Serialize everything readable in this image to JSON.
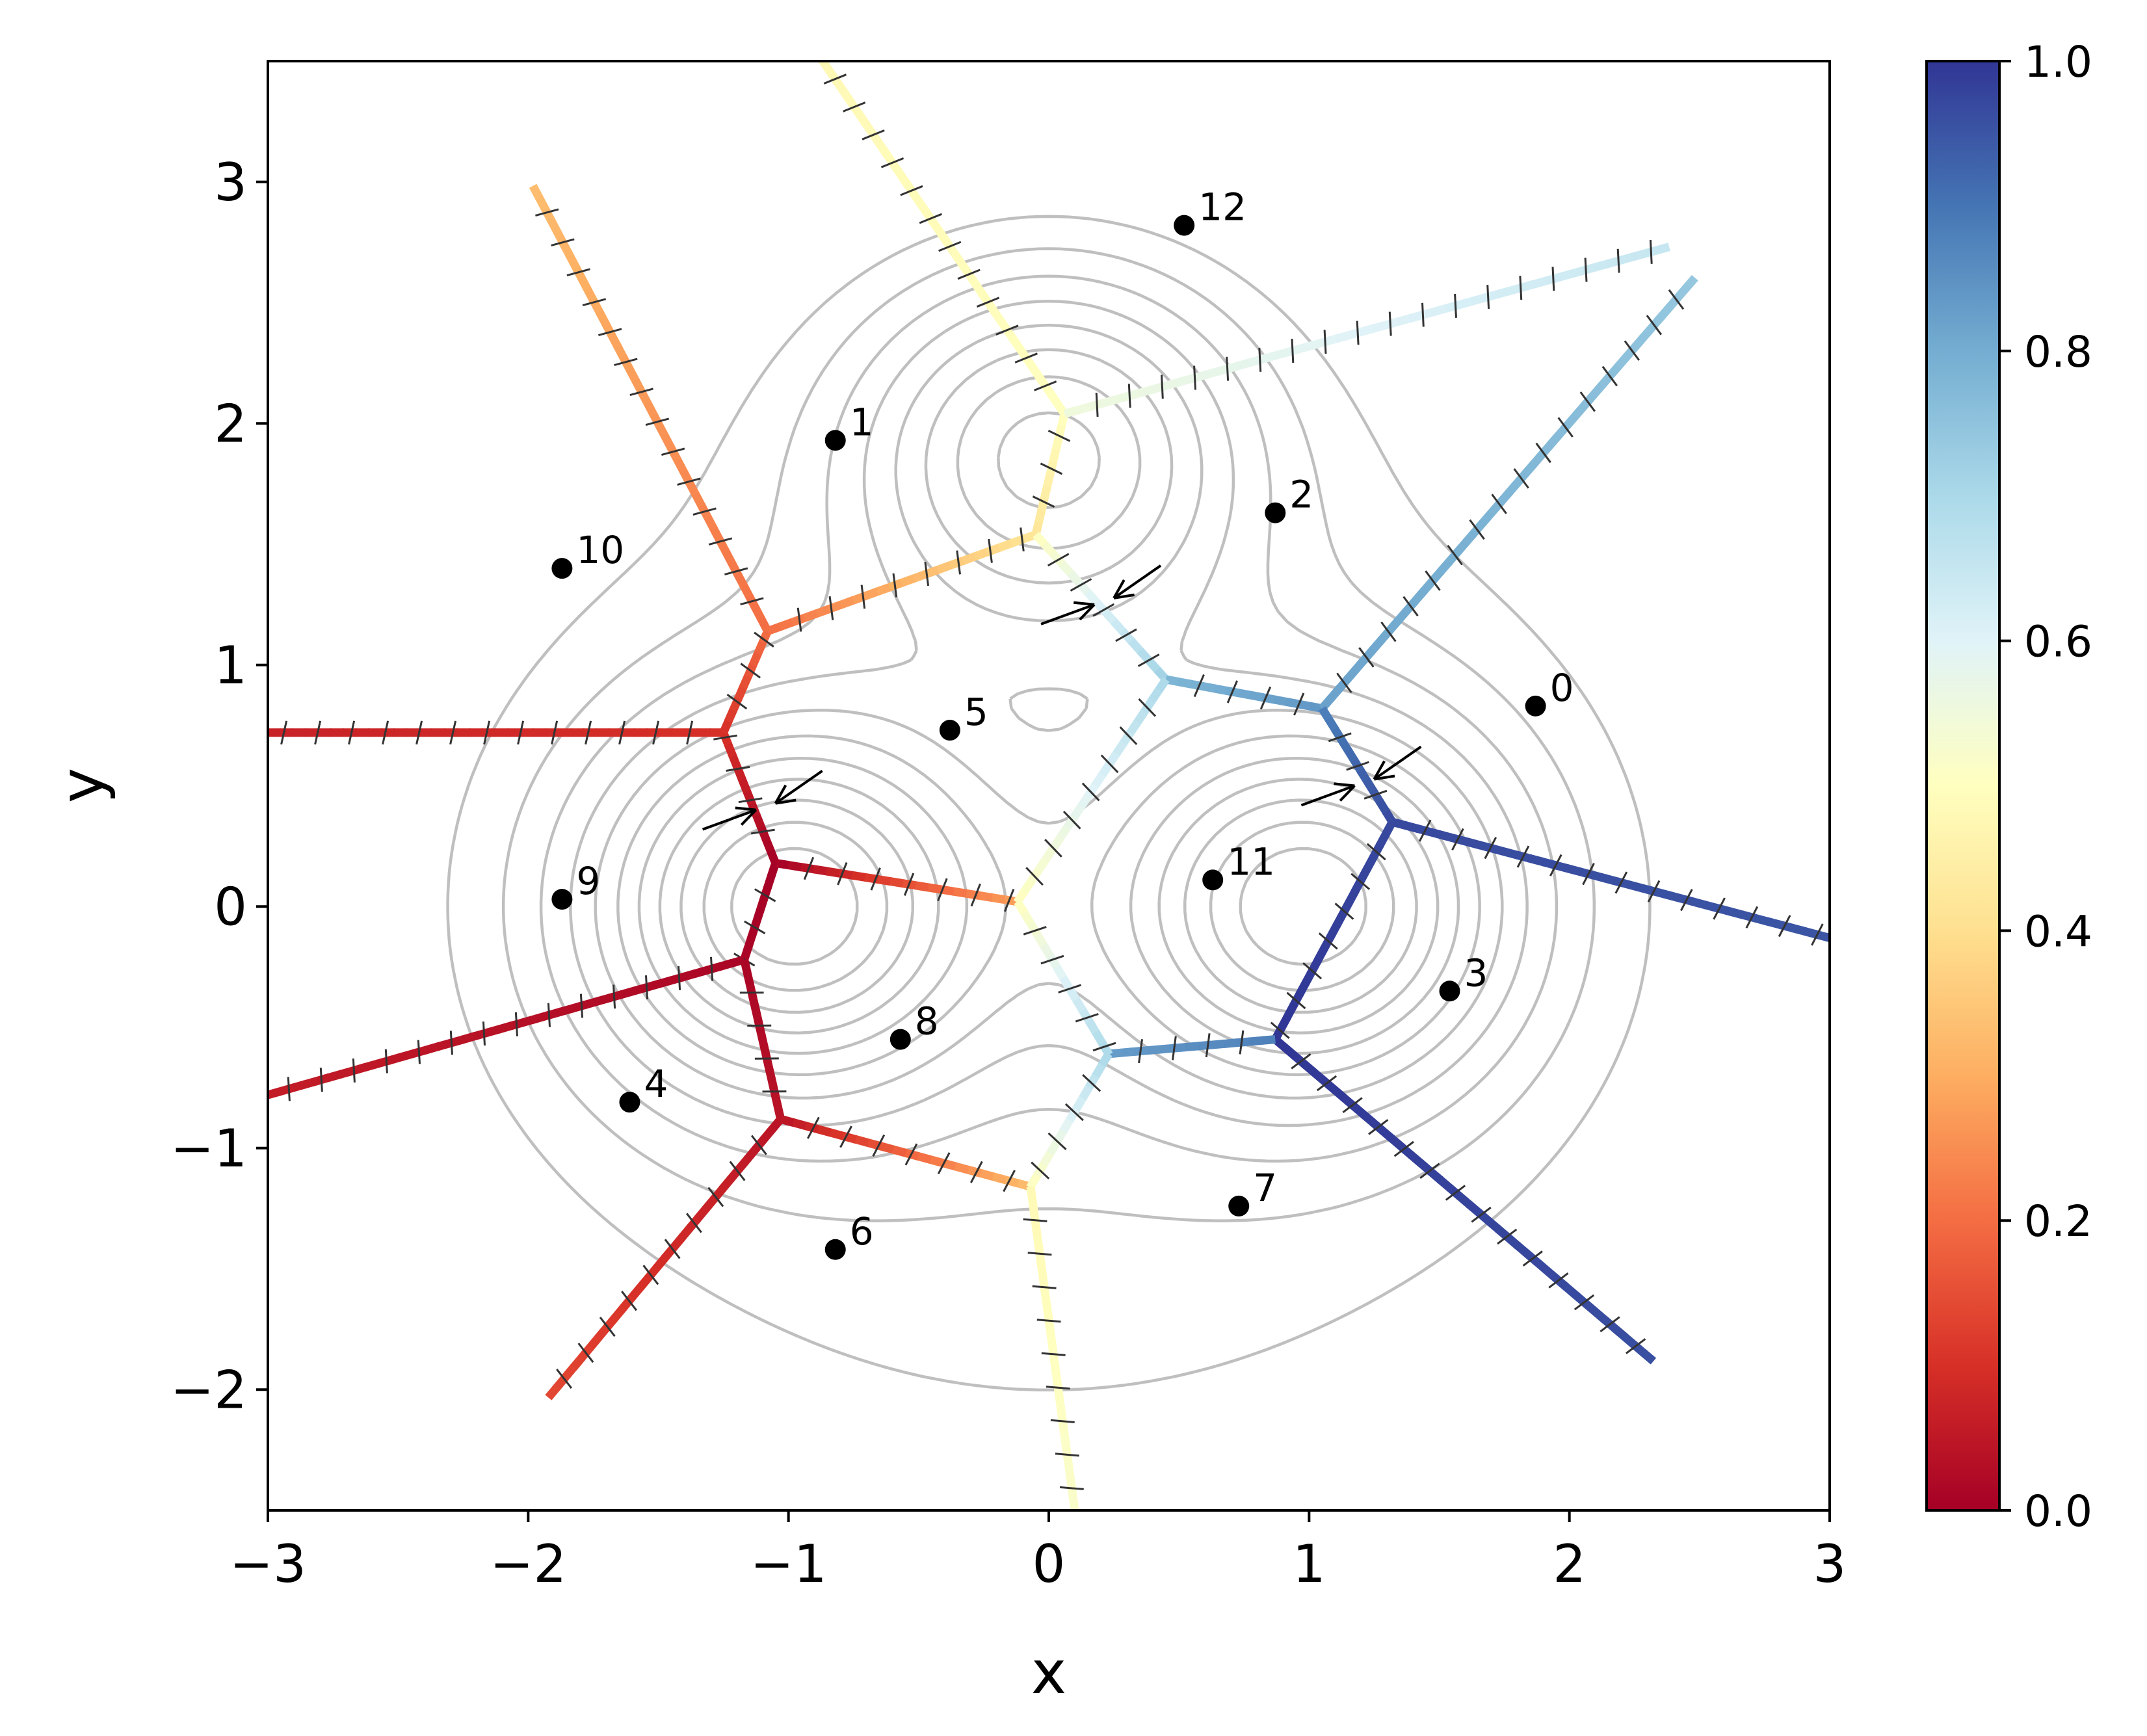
{
  "chart_data": {
    "type": "scatter",
    "title": "",
    "xlabel": "x",
    "ylabel": "y",
    "xlim": [
      -3,
      3
    ],
    "ylim": [
      -2.5,
      3.5
    ],
    "xticks": [
      "−3",
      "−2",
      "−1",
      "0",
      "1",
      "2",
      "3"
    ],
    "yticks": [
      "−2",
      "−1",
      "0",
      "1",
      "2",
      "3"
    ],
    "grid": false,
    "points": [
      {
        "label": "0",
        "x": 1.87,
        "y": 0.83
      },
      {
        "label": "1",
        "x": -0.82,
        "y": 1.93
      },
      {
        "label": "2",
        "x": 0.87,
        "y": 1.63
      },
      {
        "label": "3",
        "x": 1.54,
        "y": -0.35
      },
      {
        "label": "4",
        "x": -1.61,
        "y": -0.81
      },
      {
        "label": "5",
        "x": -0.38,
        "y": 0.73
      },
      {
        "label": "6",
        "x": -0.82,
        "y": -1.42
      },
      {
        "label": "7",
        "x": 0.73,
        "y": -1.24
      },
      {
        "label": "8",
        "x": -0.57,
        "y": -0.55
      },
      {
        "label": "9",
        "x": -1.87,
        "y": 0.03
      },
      {
        "label": "10",
        "x": -1.87,
        "y": 1.4
      },
      {
        "label": "11",
        "x": 0.63,
        "y": 0.11
      },
      {
        "label": "12",
        "x": 0.52,
        "y": 2.82
      }
    ],
    "wells": [
      {
        "x": -1.0,
        "y": 0.0
      },
      {
        "x": 1.0,
        "y": 0.0
      },
      {
        "x": 0.0,
        "y": 1.9
      }
    ],
    "edges": [
      {
        "from": [
          -1.05,
          0.18
        ],
        "to": [
          -1.17,
          -0.22
        ],
        "c0": 0.0,
        "c1": 0.01
      },
      {
        "from": [
          -1.05,
          0.18
        ],
        "to": [
          -1.25,
          0.72
        ],
        "c0": 0.0,
        "c1": 0.1
      },
      {
        "from": [
          -1.05,
          0.18
        ],
        "to": [
          -0.12,
          0.02
        ],
        "c0": 0.0,
        "c1": 0.28
      },
      {
        "from": [
          -1.17,
          -0.22
        ],
        "to": [
          -3.0,
          -0.78
        ],
        "c0": 0.01,
        "c1": 0.06
      },
      {
        "from": [
          -1.17,
          -0.22
        ],
        "to": [
          -1.03,
          -0.88
        ],
        "c0": 0.01,
        "c1": 0.04
      },
      {
        "from": [
          -1.03,
          -0.88
        ],
        "to": [
          -1.92,
          -2.03
        ],
        "c0": 0.04,
        "c1": 0.14
      },
      {
        "from": [
          -1.03,
          -0.88
        ],
        "to": [
          -0.07,
          -1.16
        ],
        "c0": 0.04,
        "c1": 0.33
      },
      {
        "from": [
          -1.25,
          0.72
        ],
        "to": [
          -3.0,
          0.72
        ],
        "c0": 0.1,
        "c1": 0.07
      },
      {
        "from": [
          -1.25,
          0.72
        ],
        "to": [
          -1.08,
          1.14
        ],
        "c0": 0.1,
        "c1": 0.2
      },
      {
        "from": [
          -1.08,
          1.14
        ],
        "to": [
          -1.98,
          2.98
        ],
        "c0": 0.2,
        "c1": 0.33
      },
      {
        "from": [
          -1.08,
          1.14
        ],
        "to": [
          -0.05,
          1.54
        ],
        "c0": 0.2,
        "c1": 0.42
      },
      {
        "from": [
          -0.05,
          1.54
        ],
        "to": [
          0.06,
          2.04
        ],
        "c0": 0.42,
        "c1": 0.5
      },
      {
        "from": [
          0.06,
          2.04
        ],
        "to": [
          -0.9,
          3.55
        ],
        "c0": 0.5,
        "c1": 0.48
      },
      {
        "from": [
          0.06,
          2.04
        ],
        "to": [
          2.38,
          2.73
        ],
        "c0": 0.55,
        "c1": 0.65
      },
      {
        "from": [
          -0.05,
          1.54
        ],
        "to": [
          0.45,
          0.94
        ],
        "c0": 0.5,
        "c1": 0.72
      },
      {
        "from": [
          0.45,
          0.94
        ],
        "to": [
          1.05,
          0.82
        ],
        "c0": 0.78,
        "c1": 0.84
      },
      {
        "from": [
          1.05,
          0.82
        ],
        "to": [
          2.48,
          2.6
        ],
        "c0": 0.82,
        "c1": 0.74
      },
      {
        "from": [
          1.05,
          0.82
        ],
        "to": [
          1.32,
          0.35
        ],
        "c0": 0.88,
        "c1": 0.97
      },
      {
        "from": [
          1.32,
          0.35
        ],
        "to": [
          3.0,
          -0.13
        ],
        "c0": 0.97,
        "c1": 0.95
      },
      {
        "from": [
          1.32,
          0.35
        ],
        "to": [
          0.87,
          -0.55
        ],
        "c0": 0.97,
        "c1": 1.0
      },
      {
        "from": [
          0.87,
          -0.55
        ],
        "to": [
          2.32,
          -1.88
        ],
        "c0": 1.0,
        "c1": 0.96
      },
      {
        "from": [
          0.87,
          -0.55
        ],
        "to": [
          0.23,
          -0.61
        ],
        "c0": 0.88,
        "c1": 0.83
      },
      {
        "from": [
          0.45,
          0.94
        ],
        "to": [
          -0.12,
          0.02
        ],
        "c0": 0.7,
        "c1": 0.5
      },
      {
        "from": [
          -0.12,
          0.02
        ],
        "to": [
          0.23,
          -0.61
        ],
        "c0": 0.5,
        "c1": 0.7
      },
      {
        "from": [
          0.23,
          -0.61
        ],
        "to": [
          -0.07,
          -1.16
        ],
        "c0": 0.7,
        "c1": 0.5
      },
      {
        "from": [
          -0.07,
          -1.16
        ],
        "to": [
          0.1,
          -2.5
        ],
        "c0": 0.48,
        "c1": 0.52
      }
    ],
    "arrow_pairs": [
      {
        "x": -1.1,
        "y": 0.4
      },
      {
        "x": 0.2,
        "y": 1.25
      },
      {
        "x": 1.2,
        "y": 0.5
      }
    ],
    "colorbar": {
      "colormap": "RdYlBu",
      "range": [
        0.0,
        1.0
      ],
      "ticks": [
        "0.0",
        "0.2",
        "0.4",
        "0.6",
        "0.8",
        "1.0"
      ],
      "stops": [
        "#a50026",
        "#d73027",
        "#f46d43",
        "#fdae61",
        "#fee090",
        "#ffffbf",
        "#e0f3f8",
        "#abd9e9",
        "#74add1",
        "#4575b4",
        "#313695"
      ]
    },
    "contour_color": "#bfbfbf",
    "marker_color": "#000000"
  }
}
